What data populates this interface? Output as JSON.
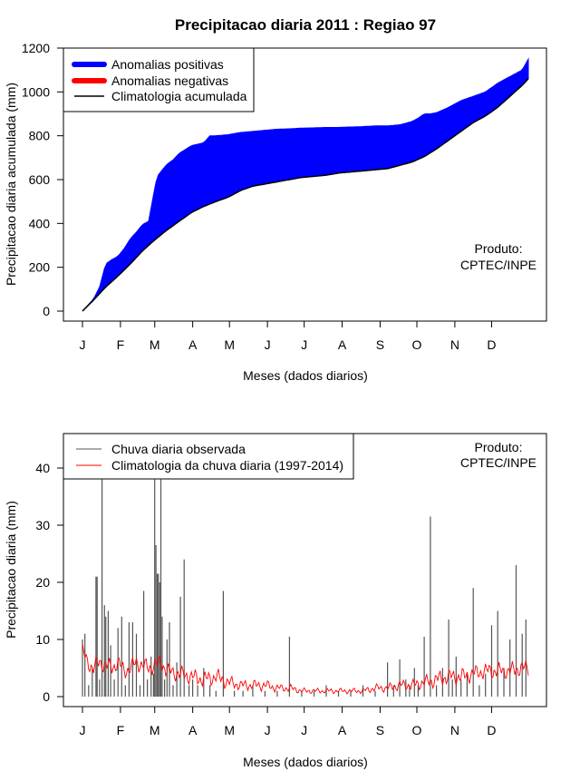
{
  "title": "Precipitacao diaria 2011 : Regiao 97",
  "colors": {
    "positive": "#0000ff",
    "negative": "#ff0000",
    "line": "#000000",
    "bar": "#555555",
    "clim": "#ff0000"
  },
  "chart_data": [
    {
      "type": "area",
      "ylabel": "Precipitacao diaria acumulada (mm)",
      "xlabel": "Meses (dados diarios)",
      "x_ticks": [
        "J",
        "F",
        "M",
        "A",
        "M",
        "J",
        "J",
        "A",
        "S",
        "O",
        "N",
        "D"
      ],
      "y_ticks": [
        "0",
        "200",
        "400",
        "600",
        "800",
        "1000",
        "1200"
      ],
      "ylim": [
        0,
        1200
      ],
      "xlim": [
        1,
        365
      ],
      "legend": {
        "position": "top-left",
        "items": [
          "Anomalias positivas",
          "Anomalias negativas",
          "Climatologia acumulada"
        ]
      },
      "note": [
        "Produto:",
        "CPTEC/INPE"
      ],
      "observed_cumulative": {
        "day": [
          1,
          10,
          15,
          20,
          25,
          30,
          35,
          40,
          45,
          50,
          55,
          60,
          62,
          67,
          70,
          75,
          80,
          90,
          100,
          105,
          110,
          120,
          130,
          140,
          150,
          160,
          170,
          180,
          190,
          200,
          210,
          220,
          230,
          240,
          250,
          260,
          270,
          275,
          280,
          285,
          290,
          300,
          310,
          320,
          325,
          330,
          340,
          350,
          360,
          365
        ],
        "value": [
          0,
          55,
          110,
          215,
          235,
          250,
          285,
          330,
          360,
          395,
          410,
          560,
          615,
          650,
          670,
          690,
          720,
          755,
          768,
          800,
          800,
          805,
          815,
          820,
          825,
          830,
          832,
          835,
          836,
          838,
          838,
          840,
          842,
          845,
          845,
          850,
          865,
          880,
          900,
          900,
          905,
          930,
          960,
          980,
          990,
          1000,
          1040,
          1070,
          1100,
          1150
        ]
      },
      "climatology_cumulative": {
        "day": [
          1,
          10,
          20,
          30,
          40,
          50,
          60,
          70,
          80,
          90,
          100,
          110,
          120,
          130,
          140,
          150,
          160,
          170,
          180,
          190,
          200,
          210,
          220,
          230,
          240,
          250,
          260,
          270,
          280,
          290,
          300,
          310,
          320,
          330,
          340,
          350,
          360,
          365
        ],
        "value": [
          0,
          50,
          110,
          160,
          215,
          275,
          325,
          370,
          410,
          450,
          478,
          500,
          520,
          550,
          570,
          580,
          590,
          600,
          610,
          615,
          620,
          630,
          635,
          640,
          645,
          650,
          665,
          680,
          705,
          740,
          780,
          820,
          860,
          890,
          930,
          980,
          1030,
          1060
        ]
      }
    },
    {
      "type": "bar",
      "ylabel": "Precipitacao diaria (mm)",
      "xlabel": "Meses (dados diarios)",
      "x_ticks": [
        "J",
        "F",
        "M",
        "A",
        "M",
        "J",
        "J",
        "A",
        "S",
        "O",
        "N",
        "D"
      ],
      "y_ticks": [
        "0",
        "10",
        "20",
        "30",
        "40"
      ],
      "ylim": [
        0,
        45
      ],
      "xlim": [
        1,
        365
      ],
      "legend": {
        "position": "top-left",
        "items": [
          "Chuva diaria observada",
          "Climatologia da chuva diaria (1997-2014)"
        ]
      },
      "note": [
        "Produto:",
        "CPTEC/INPE"
      ],
      "observed_peaks": {
        "day": [
          1,
          3,
          6,
          9,
          12,
          13,
          15,
          17,
          19,
          20,
          22,
          24,
          27,
          30,
          33,
          36,
          39,
          42,
          45,
          48,
          51,
          54,
          57,
          59,
          60,
          61,
          62,
          63,
          64,
          65,
          66,
          68,
          70,
          72,
          75,
          78,
          81,
          84,
          88,
          91,
          95,
          100,
          105,
          110,
          116,
          125,
          132,
          140,
          150,
          160,
          170,
          180,
          190,
          200,
          210,
          220,
          230,
          240,
          250,
          255,
          260,
          265,
          268,
          272,
          275,
          280,
          285,
          290,
          295,
          300,
          303,
          306,
          310,
          315,
          320,
          325,
          330,
          335,
          340,
          345,
          350,
          355,
          360,
          363
        ],
        "value": [
          10,
          11,
          2,
          5,
          21,
          21,
          3,
          38,
          16,
          14,
          15,
          9,
          3,
          12,
          14,
          2,
          13,
          13,
          11,
          2,
          18.5,
          3,
          7,
          4,
          38,
          26.5,
          21.5,
          21.5,
          20,
          38,
          14,
          3,
          10,
          13,
          2,
          6,
          17.5,
          24,
          2,
          3,
          2,
          5,
          2,
          1,
          18.5,
          1,
          1,
          2,
          1,
          1,
          10.5,
          1,
          1,
          2,
          1,
          1,
          2,
          1,
          6,
          2,
          6.5,
          3,
          2,
          5,
          2,
          10.5,
          31.5,
          2,
          5,
          13.5,
          3,
          7,
          3,
          4,
          19,
          2,
          4,
          12.5,
          15,
          5,
          10,
          23,
          11,
          13.5
        ]
      },
      "climatology_daily": {
        "day": [
          1,
          5,
          10,
          15,
          20,
          25,
          30,
          35,
          40,
          45,
          50,
          55,
          60,
          65,
          70,
          80,
          90,
          100,
          110,
          120,
          130,
          140,
          150,
          160,
          170,
          180,
          190,
          200,
          210,
          220,
          230,
          240,
          250,
          260,
          270,
          280,
          290,
          300,
          310,
          320,
          330,
          340,
          350,
          360,
          365
        ],
        "value": [
          8,
          6,
          5,
          6,
          5.5,
          5,
          6,
          4.5,
          5,
          6,
          5.5,
          5,
          5.5,
          6,
          4.5,
          4,
          3.5,
          3,
          3.5,
          2.5,
          2,
          2,
          2,
          1.5,
          1.5,
          1,
          1,
          1,
          1,
          1,
          1,
          1.5,
          1.5,
          2,
          2,
          2.5,
          3,
          3.5,
          3.5,
          4,
          4.5,
          4.5,
          4.5,
          5,
          5
        ]
      }
    }
  ]
}
